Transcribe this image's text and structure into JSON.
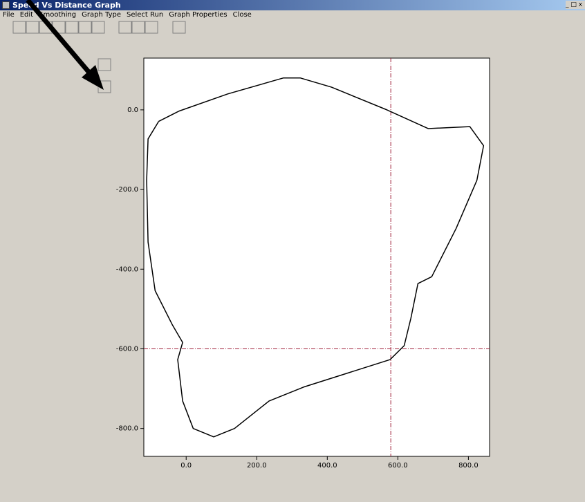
{
  "window": {
    "title": "Speed Vs Distance Graph",
    "menu": [
      "File",
      "Edit",
      "Smoothing",
      "Graph Type",
      "Select Run",
      "Graph Properties",
      "Close"
    ]
  },
  "chart_data": {
    "type": "line",
    "xlim": [
      -120,
      860
    ],
    "ylim": [
      -870,
      130
    ],
    "xticks": [
      {
        "value": 0,
        "label": "0.0"
      },
      {
        "value": 200,
        "label": "200.0"
      },
      {
        "value": 400,
        "label": "400.0"
      },
      {
        "value": 600,
        "label": "600.0"
      },
      {
        "value": 800,
        "label": "800.0"
      }
    ],
    "yticks": [
      {
        "value": 0,
        "label": "0.0"
      },
      {
        "value": -200,
        "label": "-200.0"
      },
      {
        "value": -400,
        "label": "-400.0"
      },
      {
        "value": -600,
        "label": "-600.0"
      },
      {
        "value": -800,
        "label": "-800.0"
      }
    ],
    "crosshair": {
      "x": 580,
      "y": -600,
      "color": "#a0203a"
    },
    "series": [
      {
        "color": "#000000",
        "x": [
          -78,
          -20,
          118,
          275,
          324,
          412,
          569,
          686,
          804,
          843,
          824,
          765,
          696,
          657,
          637,
          618,
          578,
          333,
          235,
          137,
          78,
          20,
          -10,
          -24,
          -10,
          -39,
          -88,
          -108,
          -112,
          -108,
          -78
        ],
        "y": [
          -29,
          -3,
          40,
          80,
          80,
          57,
          0,
          -47,
          -42,
          -90,
          -177,
          -298,
          -419,
          -436,
          -523,
          -592,
          -627,
          -696,
          -731,
          -800,
          -821,
          -800,
          -731,
          -627,
          -584,
          -540,
          -454,
          -332,
          -177,
          -73,
          -29
        ]
      }
    ]
  }
}
